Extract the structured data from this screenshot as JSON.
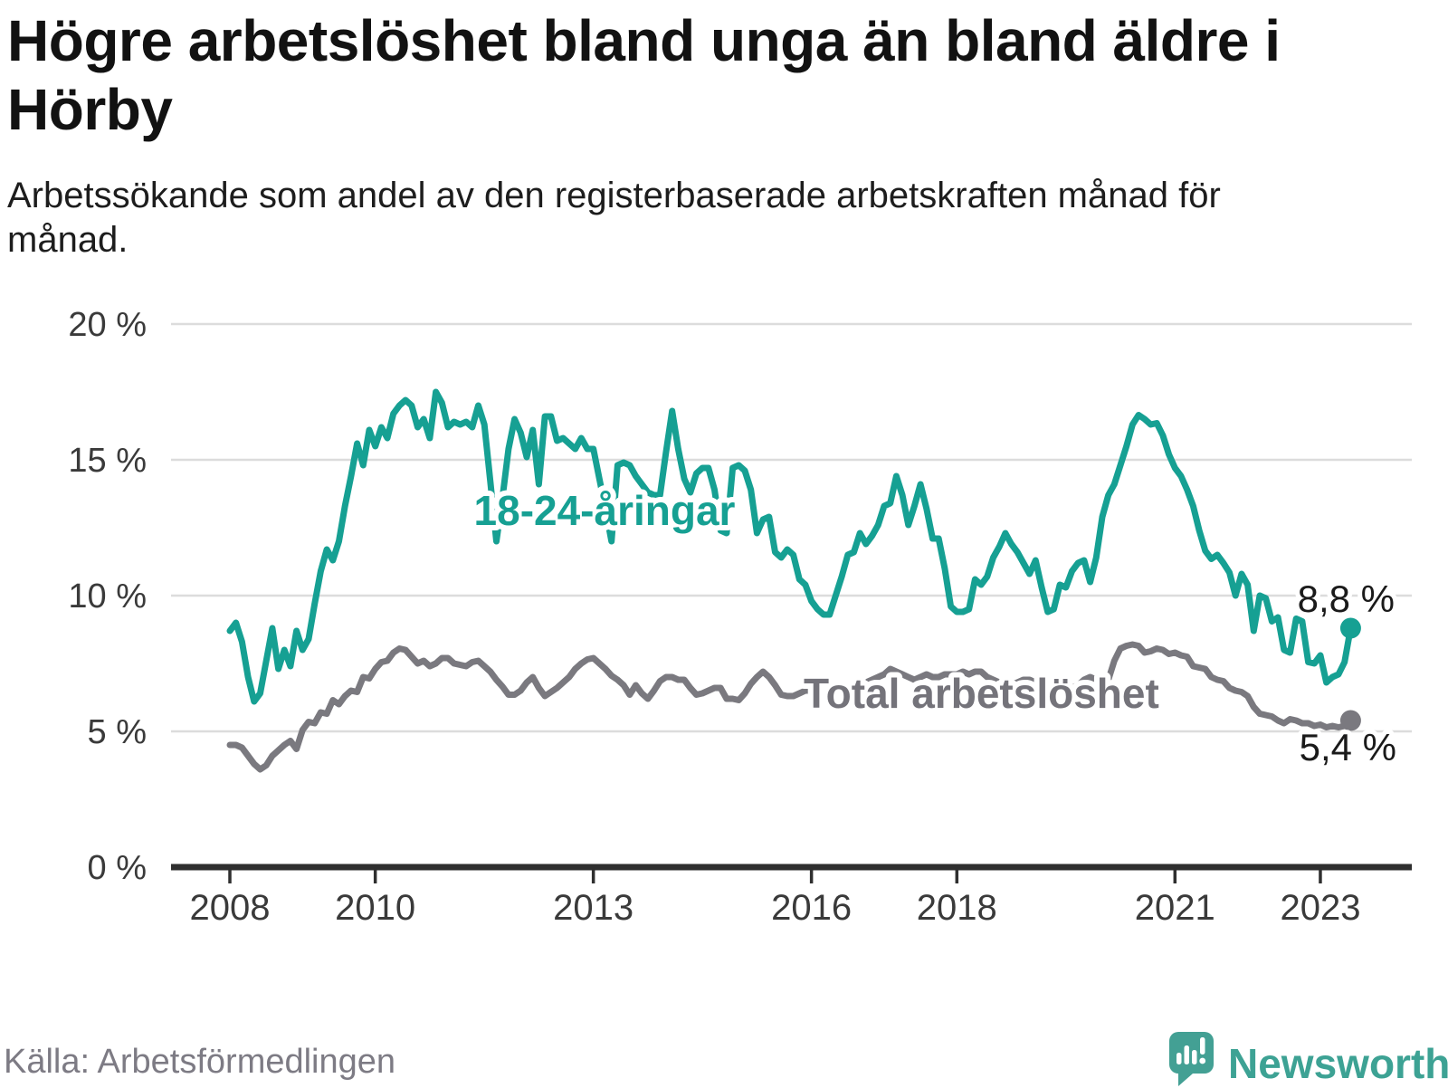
{
  "header": {
    "title": "Högre arbetslöshet bland unga än bland äldre i Hörby",
    "subtitle": "Arbetssökande som andel av den registerbaserade arbetskraften månad för månad."
  },
  "chart_data": {
    "type": "line",
    "unit": "%",
    "frequency": "monthly",
    "start": "2008-01",
    "end": "2023-06",
    "ylim": [
      0,
      20
    ],
    "grid": "horizontal-only",
    "y_ticks": [
      {
        "value": 20,
        "label": "20 %"
      },
      {
        "value": 15,
        "label": "15 %"
      },
      {
        "value": 10,
        "label": "10 %"
      },
      {
        "value": 5,
        "label": "5 %"
      },
      {
        "value": 0,
        "label": "0 %"
      }
    ],
    "x_tick_years": [
      2008,
      2010,
      2013,
      2016,
      2018,
      2021,
      2023
    ],
    "series": [
      {
        "name": "18-24-åringar",
        "color": "#16a093",
        "end_value_label": "8,8 %",
        "values": [
          8.7,
          9.0,
          8.3,
          7.0,
          6.1,
          6.4,
          7.6,
          8.8,
          7.3,
          8.0,
          7.4,
          8.7,
          8.0,
          8.4,
          9.7,
          10.9,
          11.7,
          11.3,
          12.0,
          13.3,
          14.4,
          15.6,
          14.8,
          16.1,
          15.5,
          16.2,
          15.8,
          16.7,
          17.0,
          17.2,
          17.0,
          16.2,
          16.5,
          15.8,
          17.5,
          17.1,
          16.2,
          16.4,
          16.3,
          16.4,
          16.2,
          17.0,
          16.3,
          14.2,
          12.0,
          13.6,
          15.4,
          16.5,
          16.0,
          15.1,
          16.1,
          14.1,
          16.6,
          16.6,
          15.7,
          15.8,
          15.6,
          15.4,
          15.8,
          15.4,
          15.4,
          14.3,
          13.2,
          12.0,
          14.8,
          14.9,
          14.8,
          14.4,
          14.1,
          13.8,
          13.7,
          13.7,
          15.3,
          16.8,
          15.4,
          14.3,
          13.8,
          14.5,
          14.7,
          14.7,
          13.9,
          12.4,
          12.3,
          14.7,
          14.8,
          14.6,
          13.9,
          12.3,
          12.8,
          12.9,
          11.6,
          11.4,
          11.7,
          11.5,
          10.6,
          10.4,
          9.8,
          9.5,
          9.3,
          9.3,
          10.0,
          10.7,
          11.5,
          11.6,
          12.3,
          11.9,
          12.2,
          12.6,
          13.3,
          13.4,
          14.4,
          13.7,
          12.6,
          13.3,
          14.1,
          13.2,
          12.1,
          12.1,
          11.0,
          9.6,
          9.4,
          9.4,
          9.5,
          10.6,
          10.4,
          10.7,
          11.4,
          11.8,
          12.3,
          11.9,
          11.6,
          11.2,
          10.8,
          11.3,
          10.3,
          9.4,
          9.5,
          10.4,
          10.3,
          10.9,
          11.2,
          11.3,
          10.5,
          11.4,
          12.9,
          13.7,
          14.1,
          14.8,
          15.5,
          16.3,
          16.65,
          16.5,
          16.3,
          16.35,
          15.9,
          15.2,
          14.7,
          14.4,
          13.9,
          13.3,
          12.4,
          11.65,
          11.35,
          11.5,
          11.2,
          10.85,
          10.0,
          10.8,
          10.4,
          8.7,
          10.0,
          9.9,
          9.05,
          9.2,
          8.0,
          7.9,
          9.15,
          9.05,
          7.55,
          7.5,
          7.8,
          6.8,
          7.0,
          7.1,
          7.55,
          8.8
        ]
      },
      {
        "name": "Total arbetslöshet",
        "color": "#7a797f",
        "end_value_label": "5,4 %",
        "values": [
          4.5,
          4.5,
          4.4,
          4.1,
          3.8,
          3.6,
          3.75,
          4.1,
          4.3,
          4.5,
          4.65,
          4.35,
          5.05,
          5.35,
          5.3,
          5.7,
          5.65,
          6.15,
          6.0,
          6.3,
          6.5,
          6.45,
          7.0,
          6.95,
          7.3,
          7.55,
          7.6,
          7.9,
          8.05,
          8.0,
          7.75,
          7.5,
          7.6,
          7.4,
          7.5,
          7.7,
          7.7,
          7.5,
          7.45,
          7.4,
          7.55,
          7.6,
          7.4,
          7.2,
          6.9,
          6.65,
          6.35,
          6.35,
          6.5,
          6.8,
          7.0,
          6.6,
          6.3,
          6.45,
          6.6,
          6.8,
          7.0,
          7.3,
          7.5,
          7.65,
          7.7,
          7.5,
          7.3,
          7.05,
          6.9,
          6.7,
          6.35,
          6.7,
          6.4,
          6.2,
          6.5,
          6.85,
          7.0,
          7.0,
          6.9,
          6.9,
          6.6,
          6.35,
          6.4,
          6.5,
          6.6,
          6.6,
          6.2,
          6.2,
          6.15,
          6.4,
          6.75,
          7.0,
          7.2,
          7.0,
          6.7,
          6.35,
          6.3,
          6.3,
          6.4,
          6.5,
          6.5,
          6.6,
          6.6,
          6.5,
          6.4,
          6.4,
          6.5,
          6.6,
          6.7,
          6.8,
          6.9,
          7.0,
          7.1,
          7.3,
          7.2,
          7.1,
          7.0,
          6.9,
          7.0,
          7.1,
          7.0,
          7.0,
          7.1,
          7.1,
          7.1,
          7.2,
          7.1,
          7.2,
          7.2,
          7.0,
          6.9,
          6.8,
          6.7,
          6.7,
          6.8,
          6.9,
          6.9,
          6.8,
          6.7,
          6.6,
          6.5,
          6.5,
          6.6,
          6.6,
          6.7,
          6.9,
          7.0,
          6.9,
          6.9,
          6.9,
          7.6,
          8.05,
          8.15,
          8.2,
          8.15,
          7.9,
          7.95,
          8.05,
          8.0,
          7.85,
          7.9,
          7.8,
          7.75,
          7.4,
          7.35,
          7.3,
          7.0,
          6.9,
          6.85,
          6.6,
          6.5,
          6.45,
          6.3,
          5.9,
          5.65,
          5.6,
          5.55,
          5.4,
          5.3,
          5.45,
          5.4,
          5.3,
          5.3,
          5.2,
          5.25,
          5.15,
          5.2,
          5.15,
          5.2,
          5.4
        ]
      }
    ]
  },
  "footer": {
    "source": "Källa: Arbetsförmedlingen",
    "brand": "Newsworthy"
  }
}
